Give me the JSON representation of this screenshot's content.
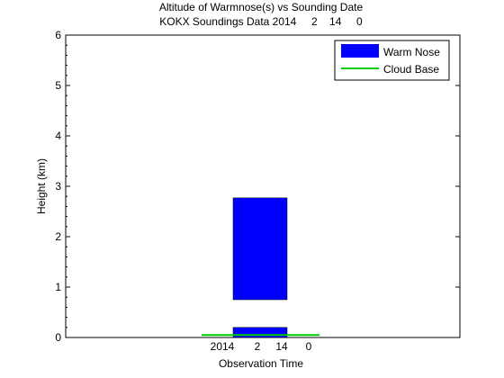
{
  "chart_data": {
    "type": "bar",
    "title": "Altitude of Warmnose(s) vs Sounding Date",
    "subtitle": "KOKX Soundings Data 2014     2    14     0",
    "xlabel": "Observation Time",
    "ylabel": "Height (km)",
    "x_tick_labels": [
      "2014",
      "2",
      "14",
      "0"
    ],
    "ylim": [
      0,
      6
    ],
    "yticks": [
      "0",
      "1",
      "2",
      "3",
      "4",
      "5",
      "6"
    ],
    "grid": false,
    "legend_position": "top-right",
    "series": [
      {
        "name": "Warm Nose",
        "kind": "floating-bar",
        "color": "#0000ff",
        "segments": [
          {
            "bottom": 0.75,
            "top": 2.77
          },
          {
            "bottom": 0.0,
            "top": 0.2
          }
        ]
      },
      {
        "name": "Cloud Base",
        "kind": "horizontal-line",
        "color": "#00cc00",
        "y": 0.05
      }
    ]
  }
}
